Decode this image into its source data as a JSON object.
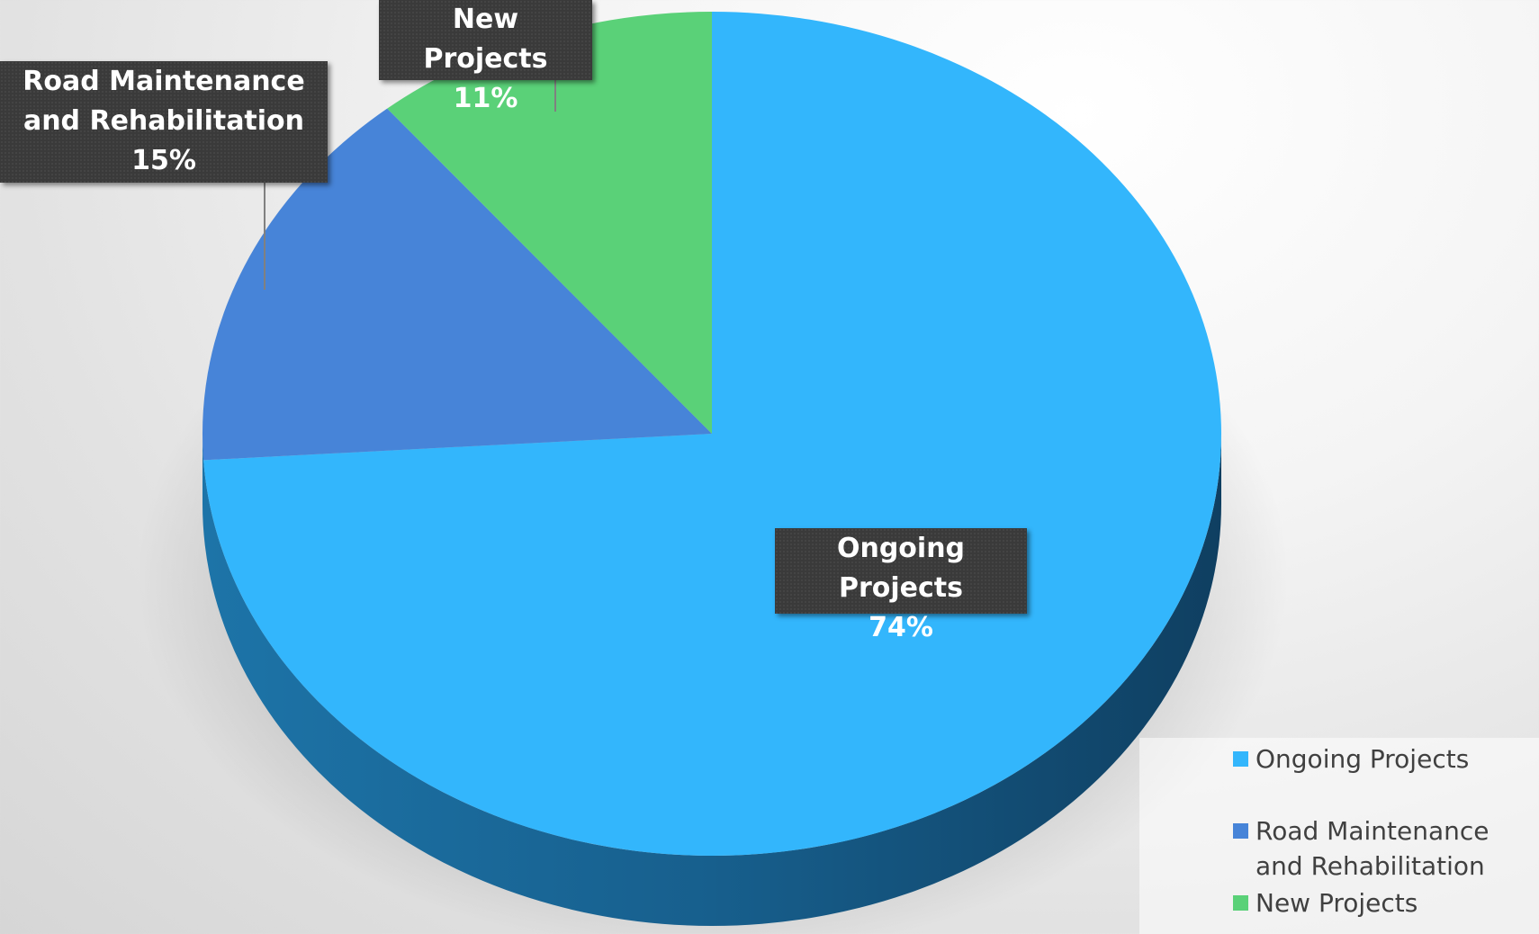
{
  "chart_data": {
    "type": "pie",
    "style": "3d",
    "categories": [
      "Ongoing Projects",
      "Road Maintenance and Rehabilitation",
      "New Projects"
    ],
    "values": [
      74,
      15,
      11
    ],
    "value_labels": [
      "74%",
      "15%",
      "11%"
    ],
    "colors": [
      "#33b6fc",
      "#4784d8",
      "#5ad178"
    ],
    "legend": {
      "placement": "bottom-right"
    }
  }
}
